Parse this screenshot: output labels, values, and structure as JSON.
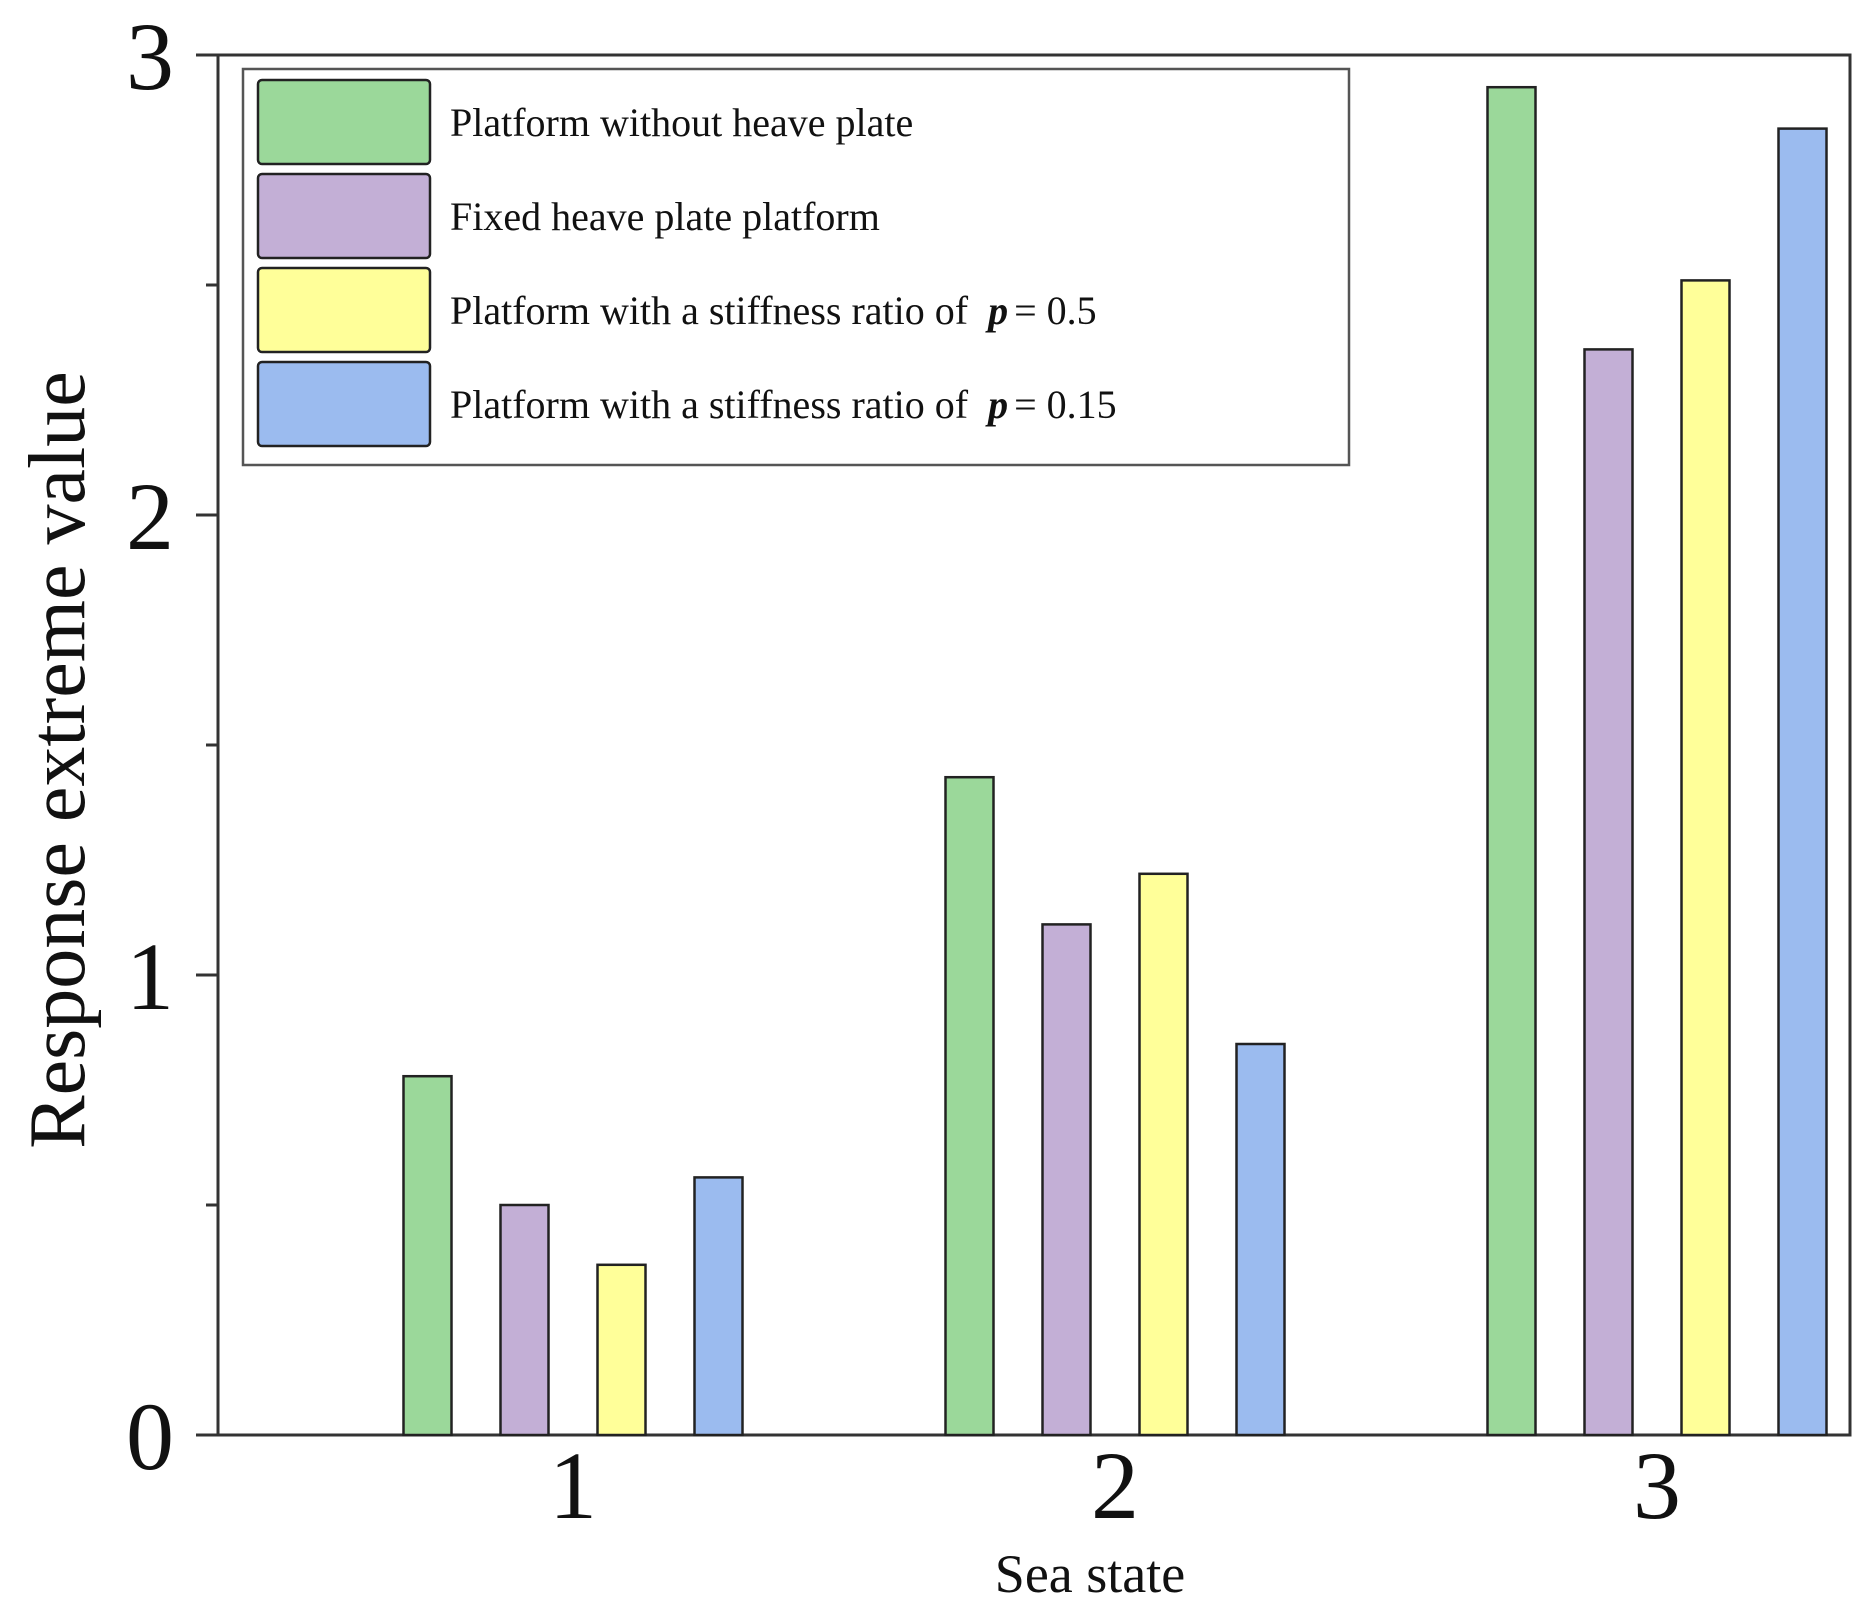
{
  "chart_data": {
    "type": "bar",
    "title": "",
    "xlabel": "Sea state",
    "ylabel": "Response extreme value",
    "categories": [
      "1",
      "2",
      "3"
    ],
    "ylim": [
      0,
      3
    ],
    "yticks": [
      "0",
      "1",
      "2",
      "3"
    ],
    "legend_position": "top-left",
    "grid": false,
    "series": [
      {
        "name": "Platform without heave plate",
        "color": "#9bd89a",
        "values": [
          0.78,
          1.43,
          2.93
        ]
      },
      {
        "name": "Fixed heave plate platform",
        "color": "#c3afd6",
        "values": [
          0.5,
          1.11,
          2.36
        ]
      },
      {
        "name": "Platform with a stiffness ratio of",
        "p_symbol": "p",
        "p_value": "= 0.5",
        "color": "#ffff99",
        "values": [
          0.37,
          1.22,
          2.51
        ]
      },
      {
        "name": "Platform with a stiffness ratio of",
        "p_symbol": "p",
        "p_value": "= 0.15",
        "color": "#9bbbef",
        "values": [
          0.56,
          0.85,
          2.84
        ]
      }
    ]
  }
}
